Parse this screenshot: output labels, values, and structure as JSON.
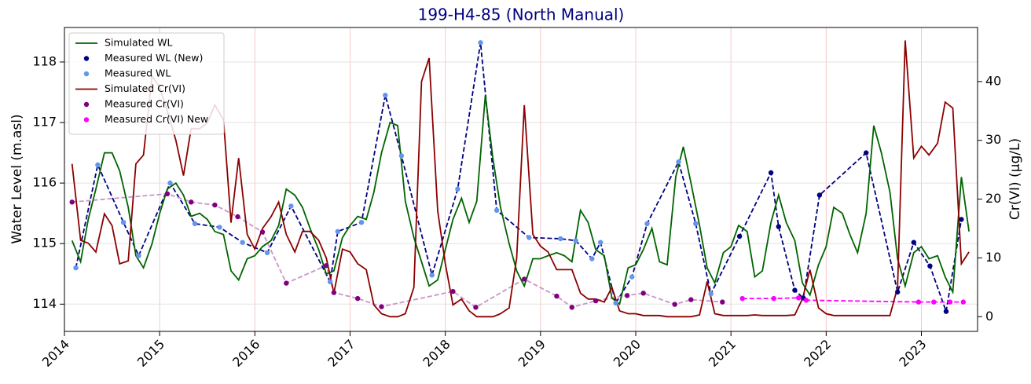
{
  "chart_data": {
    "type": "line",
    "title": "199-H4-85 (North Manual)",
    "y_label": "Water Level (m.asl)",
    "y2_label": "Cr(VI) (µg/L)",
    "xlim": [
      2014,
      2023.59
    ],
    "xticks": [
      2014,
      2015,
      2016,
      2017,
      2018,
      2019,
      2020,
      2021,
      2022,
      2023
    ],
    "ylim": [
      113.55,
      118.57
    ],
    "yticks": [
      114,
      115,
      116,
      117,
      118
    ],
    "y2lim": [
      -2.5,
      49.2
    ],
    "y2ticks": [
      0,
      10,
      20,
      30,
      40
    ],
    "grid": true,
    "legend": "upper left",
    "x": [
      2014.08,
      2014.17,
      2014.25,
      2014.33,
      2014.42,
      2014.5,
      2014.58,
      2014.67,
      2014.75,
      2014.83,
      2014.92,
      2015.0,
      2015.08,
      2015.17,
      2015.25,
      2015.33,
      2015.42,
      2015.5,
      2015.58,
      2015.67,
      2015.75,
      2015.83,
      2015.92,
      2016.0,
      2016.08,
      2016.17,
      2016.25,
      2016.33,
      2016.42,
      2016.5,
      2016.58,
      2016.67,
      2016.75,
      2016.83,
      2016.92,
      2017.0,
      2017.08,
      2017.17,
      2017.25,
      2017.33,
      2017.42,
      2017.5,
      2017.58,
      2017.67,
      2017.75,
      2017.83,
      2017.92,
      2018.0,
      2018.08,
      2018.17,
      2018.25,
      2018.33,
      2018.42,
      2018.5,
      2018.58,
      2018.67,
      2018.75,
      2018.83,
      2018.92,
      2019.0,
      2019.08,
      2019.17,
      2019.25,
      2019.33,
      2019.42,
      2019.5,
      2019.58,
      2019.67,
      2019.75,
      2019.83,
      2019.92,
      2020.0,
      2020.08,
      2020.17,
      2020.25,
      2020.33,
      2020.42,
      2020.5,
      2020.58,
      2020.67,
      2020.75,
      2020.83,
      2020.92,
      2021.0,
      2021.08,
      2021.17,
      2021.25,
      2021.33,
      2021.42,
      2021.5,
      2021.58,
      2021.67,
      2021.75,
      2021.83,
      2021.92,
      2022.0,
      2022.08,
      2022.17,
      2022.25,
      2022.33,
      2022.42,
      2022.5,
      2022.58,
      2022.67,
      2022.75,
      2022.83,
      2022.92,
      2023.0,
      2023.08,
      2023.17,
      2023.25,
      2023.33,
      2023.42,
      2023.5
    ],
    "series": [
      {
        "name": "Simulated WL",
        "type": "line",
        "color": "#006400",
        "values": [
          115.05,
          114.7,
          115.4,
          115.9,
          116.5,
          116.5,
          116.2,
          115.6,
          114.8,
          114.6,
          115.0,
          115.5,
          115.9,
          116.0,
          115.8,
          115.45,
          115.5,
          115.4,
          115.2,
          115.15,
          114.55,
          114.4,
          114.75,
          114.8,
          114.95,
          115.05,
          115.3,
          115.9,
          115.8,
          115.6,
          115.25,
          114.9,
          114.5,
          114.55,
          115.1,
          115.3,
          115.45,
          115.4,
          115.85,
          116.5,
          117.0,
          116.95,
          115.7,
          115.1,
          114.7,
          114.3,
          114.4,
          114.9,
          115.4,
          115.75,
          115.35,
          115.7,
          117.45,
          116.4,
          115.6,
          115.0,
          114.55,
          114.3,
          114.75,
          114.75,
          114.8,
          114.85,
          114.8,
          114.7,
          115.55,
          115.35,
          114.9,
          114.8,
          114.1,
          114.0,
          114.6,
          114.65,
          114.9,
          115.25,
          114.7,
          114.65,
          116.1,
          116.6,
          116.0,
          115.3,
          114.6,
          114.35,
          114.85,
          114.95,
          115.3,
          115.2,
          114.45,
          114.55,
          115.35,
          115.8,
          115.35,
          115.05,
          114.35,
          114.15,
          114.65,
          114.95,
          115.6,
          115.5,
          115.15,
          114.85,
          115.5,
          116.95,
          116.5,
          115.85,
          114.75,
          114.3,
          114.85,
          114.95,
          114.75,
          114.8,
          114.45,
          114.2,
          116.1,
          115.2
        ]
      },
      {
        "name": "Measured WL (New)",
        "type": "scatter",
        "color": "#000080",
        "dash_color": "#000080",
        "x": [
          2021.09,
          2021.42,
          2021.5,
          2021.67,
          2021.76,
          2021.93,
          2022.42,
          2022.75,
          2022.92,
          2023.09,
          2023.26,
          2023.42
        ],
        "values": [
          115.12,
          116.17,
          115.28,
          114.23,
          114.1,
          115.8,
          116.5,
          114.2,
          115.02,
          114.63,
          113.88,
          115.4
        ]
      },
      {
        "name": "Measured WL",
        "type": "scatter",
        "color": "#6495ed",
        "dash_color": "#000080",
        "x": [
          2014.12,
          2014.35,
          2014.62,
          2014.78,
          2015.11,
          2015.37,
          2015.63,
          2015.87,
          2016.13,
          2016.38,
          2016.79,
          2016.87,
          2017.12,
          2017.37,
          2017.54,
          2017.86,
          2018.13,
          2018.37,
          2018.54,
          2018.88,
          2019.21,
          2019.37,
          2019.54,
          2019.63,
          2019.79,
          2019.96,
          2020.12,
          2020.45,
          2020.63,
          2020.79
        ],
        "values": [
          114.6,
          116.3,
          115.35,
          114.8,
          116.0,
          115.33,
          115.27,
          115.02,
          114.85,
          115.62,
          114.37,
          115.2,
          115.35,
          117.45,
          116.45,
          114.48,
          115.9,
          118.32,
          115.55,
          115.1,
          115.08,
          115.05,
          114.75,
          115.02,
          114.02,
          114.45,
          115.33,
          116.35,
          115.33,
          114.17
        ]
      },
      {
        "name": "Simulated Cr(VI)",
        "type": "line",
        "color": "#8b0000",
        "axis": "y2",
        "values": [
          26,
          13,
          12.5,
          11,
          17.5,
          15.5,
          9,
          9.5,
          26,
          27.5,
          41,
          39,
          35,
          30,
          24,
          32,
          32,
          33,
          36,
          33.5,
          16,
          27,
          14,
          11.5,
          15,
          17,
          19.5,
          14,
          11,
          14.5,
          14.5,
          13,
          10,
          4,
          11.5,
          11,
          9,
          8,
          2,
          0.5,
          0,
          0,
          0.5,
          5,
          40,
          44,
          18,
          9,
          2,
          3,
          1,
          0,
          0,
          0,
          0.5,
          1.5,
          10,
          36,
          14,
          12,
          11,
          8,
          8,
          8,
          4,
          3,
          3,
          2.5,
          5,
          1,
          0.5,
          0.5,
          0.2,
          0.2,
          0.2,
          0,
          0,
          0,
          0,
          0.3,
          6,
          0.5,
          0.2,
          0.2,
          0.2,
          0.2,
          0.3,
          0.2,
          0.2,
          0.2,
          0.2,
          0.3,
          3,
          8,
          1.5,
          0.5,
          0.2,
          0.2,
          0.2,
          0.2,
          0.2,
          0.2,
          0.2,
          0.2,
          5,
          47,
          27,
          29,
          27.5,
          29.5,
          36.5,
          35.5,
          9,
          11
        ]
      },
      {
        "name": "Measured Cr(VI)",
        "type": "scatter",
        "color": "#800080",
        "dash_color": "#c896c8",
        "axis": "y2",
        "x": [
          2014.08,
          2015.08,
          2015.33,
          2015.58,
          2015.82,
          2016.08,
          2016.33,
          2016.75,
          2016.83,
          2017.08,
          2017.33,
          2018.08,
          2018.32,
          2018.83,
          2019.17,
          2019.33,
          2019.58,
          2019.91,
          2020.08,
          2020.41,
          2020.58,
          2020.91
        ],
        "values": [
          19.5,
          20.9,
          19.5,
          19,
          17,
          14.4,
          5.7,
          8.7,
          4.1,
          3.1,
          1.7,
          4.3,
          1.6,
          6.4,
          3.5,
          1.6,
          2.7,
          3.6,
          4.0,
          2.1,
          2.9,
          2.5
        ]
      },
      {
        "name": "Measured Cr(VI) New",
        "type": "scatter",
        "color": "#ff00ff",
        "dash_color": "#ff00ff",
        "axis": "y2",
        "x": [
          2021.12,
          2021.45,
          2021.71,
          2021.79,
          2022.97,
          2023.13,
          2023.3,
          2023.44
        ],
        "values": [
          3.1,
          3.1,
          3.2,
          2.8,
          2.5,
          2.5,
          2.5,
          2.5
        ]
      }
    ]
  }
}
